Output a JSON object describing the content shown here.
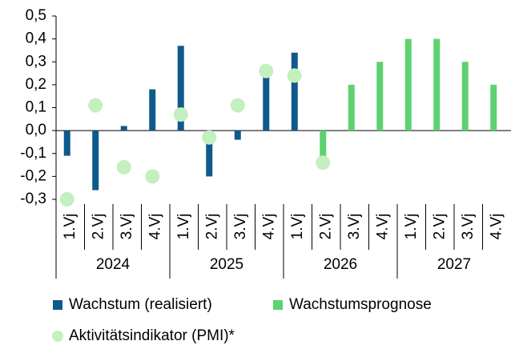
{
  "chart_data": {
    "type": "bar",
    "categories": [
      "1.Vj",
      "2.Vj",
      "3.Vj",
      "4.Vj",
      "1.Vj",
      "2.Vj",
      "3.Vj",
      "4.Vj",
      "1.Vj",
      "2.Vj",
      "3.Vj",
      "4.Vj",
      "1.Vj",
      "2.Vj",
      "3.Vj",
      "4.Vj"
    ],
    "groups": [
      "2024",
      "2025",
      "2026",
      "2027"
    ],
    "series": [
      {
        "name": "Wachstum (realisiert)",
        "color": "#0f5a8c",
        "values": [
          -0.11,
          -0.26,
          0.02,
          0.18,
          0.37,
          -0.2,
          -0.04,
          0.24,
          0.34,
          null,
          null,
          null,
          null,
          null,
          null,
          null
        ]
      },
      {
        "name": "Wachstumsprognose",
        "color": "#5ed170",
        "values": [
          null,
          null,
          null,
          null,
          null,
          null,
          null,
          null,
          null,
          -0.15,
          0.2,
          0.3,
          0.4,
          0.4,
          0.3,
          0.2
        ]
      },
      {
        "name": "Aktivitätsindikator (PMI)*",
        "color": "#c4efbe",
        "type": "scatter",
        "values": [
          -0.3,
          0.11,
          -0.16,
          -0.2,
          0.07,
          -0.03,
          0.11,
          0.26,
          0.24,
          -0.14,
          null,
          null,
          null,
          null,
          null,
          null
        ]
      }
    ],
    "ylim": [
      -0.3,
      0.5
    ],
    "yticks": [
      {
        "value": -0.3,
        "label": "-0,3"
      },
      {
        "value": -0.2,
        "label": "-0,2"
      },
      {
        "value": -0.1,
        "label": "-0,1"
      },
      {
        "value": 0,
        "label": "0,0"
      },
      {
        "value": 0.1,
        "label": "0,1"
      },
      {
        "value": 0.2,
        "label": "0,2"
      },
      {
        "value": 0.3,
        "label": "0,3"
      },
      {
        "value": 0.4,
        "label": "0,4"
      },
      {
        "value": 0.5,
        "label": "0,5"
      }
    ],
    "legend": "bottom"
  }
}
